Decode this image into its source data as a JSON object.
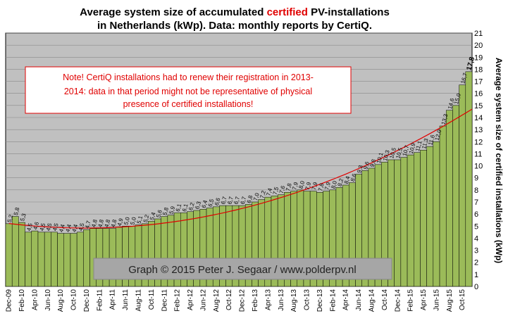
{
  "chart_data": {
    "type": "bar",
    "title_line1_pre": "Average system size of accumulated ",
    "title_line1_highlight": "certified",
    "title_line1_post": " PV-installations",
    "title_line2": "in Netherlands (kWp). Data: monthly reports by CertiQ.",
    "ylabel": "Average system size of certified installations (kWp)",
    "xlabel": "",
    "ylim": [
      0,
      21
    ],
    "y_ticks": [
      0,
      1,
      2,
      3,
      4,
      5,
      6,
      7,
      8,
      9,
      10,
      11,
      12,
      13,
      14,
      15,
      16,
      17,
      18,
      19,
      20,
      21
    ],
    "y_axis_side": "right",
    "grid": true,
    "bar_color": "#9bbb59",
    "plot_background": "#c0c0c0",
    "trendline": {
      "type": "polynomial",
      "color": "#e00000"
    },
    "categories": [
      "Dec-09",
      "Jan-10",
      "Feb-10",
      "Mar-10",
      "Apr-10",
      "May-10",
      "Jun-10",
      "Jul-10",
      "Aug-10",
      "Sep-10",
      "Oct-10",
      "Nov-10",
      "Dec-10",
      "Jan-11",
      "Feb-11",
      "Mar-11",
      "Apr-11",
      "May-11",
      "Jun-11",
      "Jul-11",
      "Aug-11",
      "Sep-11",
      "Oct-11",
      "Nov-11",
      "Dec-11",
      "Jan-12",
      "Feb-12",
      "Mar-12",
      "Apr-12",
      "May-12",
      "Jun-12",
      "Jul-12",
      "Aug-12",
      "Sep-12",
      "Oct-12",
      "Nov-12",
      "Dec-12",
      "Jan-13",
      "Feb-13",
      "Mar-13",
      "Apr-13",
      "May-13",
      "Jun-13",
      "Jul-13",
      "Aug-13",
      "Sep-13",
      "Oct-13",
      "Nov-13",
      "Dec-13",
      "Jan-14",
      "Feb-14",
      "Mar-14",
      "Apr-14",
      "May-14",
      "Jun-14",
      "Jul-14",
      "Aug-14",
      "Sep-14",
      "Oct-14",
      "Nov-14",
      "Dec-14",
      "Jan-15",
      "Feb-15",
      "Mar-15",
      "Apr-15",
      "May-15",
      "Jun-15",
      "Jul-15",
      "Aug-15",
      "Sep-15",
      "Oct-15",
      "Nov-15"
    ],
    "x_tick_labels": [
      "Dec-09",
      "Feb-10",
      "Apr-10",
      "Jun-10",
      "Aug-10",
      "Oct-10",
      "Dec-10",
      "Feb-11",
      "Apr-11",
      "Jun-11",
      "Aug-11",
      "Oct-11",
      "Dec-11",
      "Feb-12",
      "Apr-12",
      "Jun-12",
      "Aug-12",
      "Oct-12",
      "Dec-12",
      "Feb-13",
      "Apr-13",
      "Jun-13",
      "Aug-13",
      "Oct-13",
      "Dec-13",
      "Feb-14",
      "Apr-14",
      "Jun-14",
      "Aug-14",
      "Oct-14",
      "Dec-14",
      "Feb-15",
      "Apr-15",
      "Jun-15",
      "Aug-15",
      "Oct-15"
    ],
    "values": [
      5.2,
      5.8,
      5.3,
      4.5,
      4.6,
      4.5,
      4.5,
      4.5,
      4.4,
      4.4,
      4.4,
      4.5,
      4.7,
      4.8,
      4.8,
      4.8,
      4.8,
      4.9,
      5.0,
      5.0,
      5.1,
      5.2,
      5.4,
      5.6,
      5.8,
      5.9,
      6.1,
      6.1,
      6.2,
      6.3,
      6.4,
      6.5,
      6.6,
      6.7,
      6.7,
      6.7,
      6.7,
      6.8,
      7.0,
      7.2,
      7.4,
      7.5,
      7.6,
      7.8,
      7.9,
      8.0,
      7.9,
      7.9,
      7.8,
      7.9,
      8.0,
      8.2,
      8.4,
      8.6,
      9.3,
      9.6,
      9.8,
      10.1,
      10.3,
      10.5,
      10.5,
      10.7,
      10.9,
      11.1,
      11.3,
      11.6,
      12.0,
      13.3,
      14.6,
      15.0,
      16.7,
      17.8
    ],
    "value_labels": [
      "5,2",
      "5,8",
      "5,3",
      "4,5",
      "4,6",
      "4,5",
      "4,5",
      "4,5",
      "4,4",
      "4,4",
      "4,4",
      "4,5",
      "4,7",
      "4,8",
      "4,8",
      "4,8",
      "4,8",
      "4,9",
      "5,0",
      "5,0",
      "5,1",
      "5,2",
      "5,4",
      "5,6",
      "5,8",
      "5,9",
      "6,1",
      "6,1",
      "6,2",
      "6,3",
      "6,4",
      "6,5",
      "6,6",
      "6,7",
      "6,7",
      "6,7",
      "6,7",
      "6,8",
      "7,0",
      "7,2",
      "7,4",
      "7,5",
      "7,6",
      "7,8",
      "7,9",
      "8,0",
      "7,9",
      "7,9",
      "7,8",
      "7,9",
      "8,0",
      "8,2",
      "8,4",
      "8,6",
      "9,3",
      "9,6",
      "9,8",
      "10,1",
      "10,3",
      "10,5",
      "10,5",
      "10,7",
      "10,9",
      "11,1",
      "11,3",
      "11,6",
      "12,0",
      "13,3",
      "14,6",
      "15,0",
      "16,7",
      "17,8"
    ],
    "note": {
      "lines": [
        "Note! CertiQ installations had to renew their registration in 2013-",
        "2014: data in that period might not be representative of physical",
        "presence of certified installations!"
      ]
    },
    "credit": "Graph © 2015 Peter J. Segaar / www.polderpv.nl"
  }
}
